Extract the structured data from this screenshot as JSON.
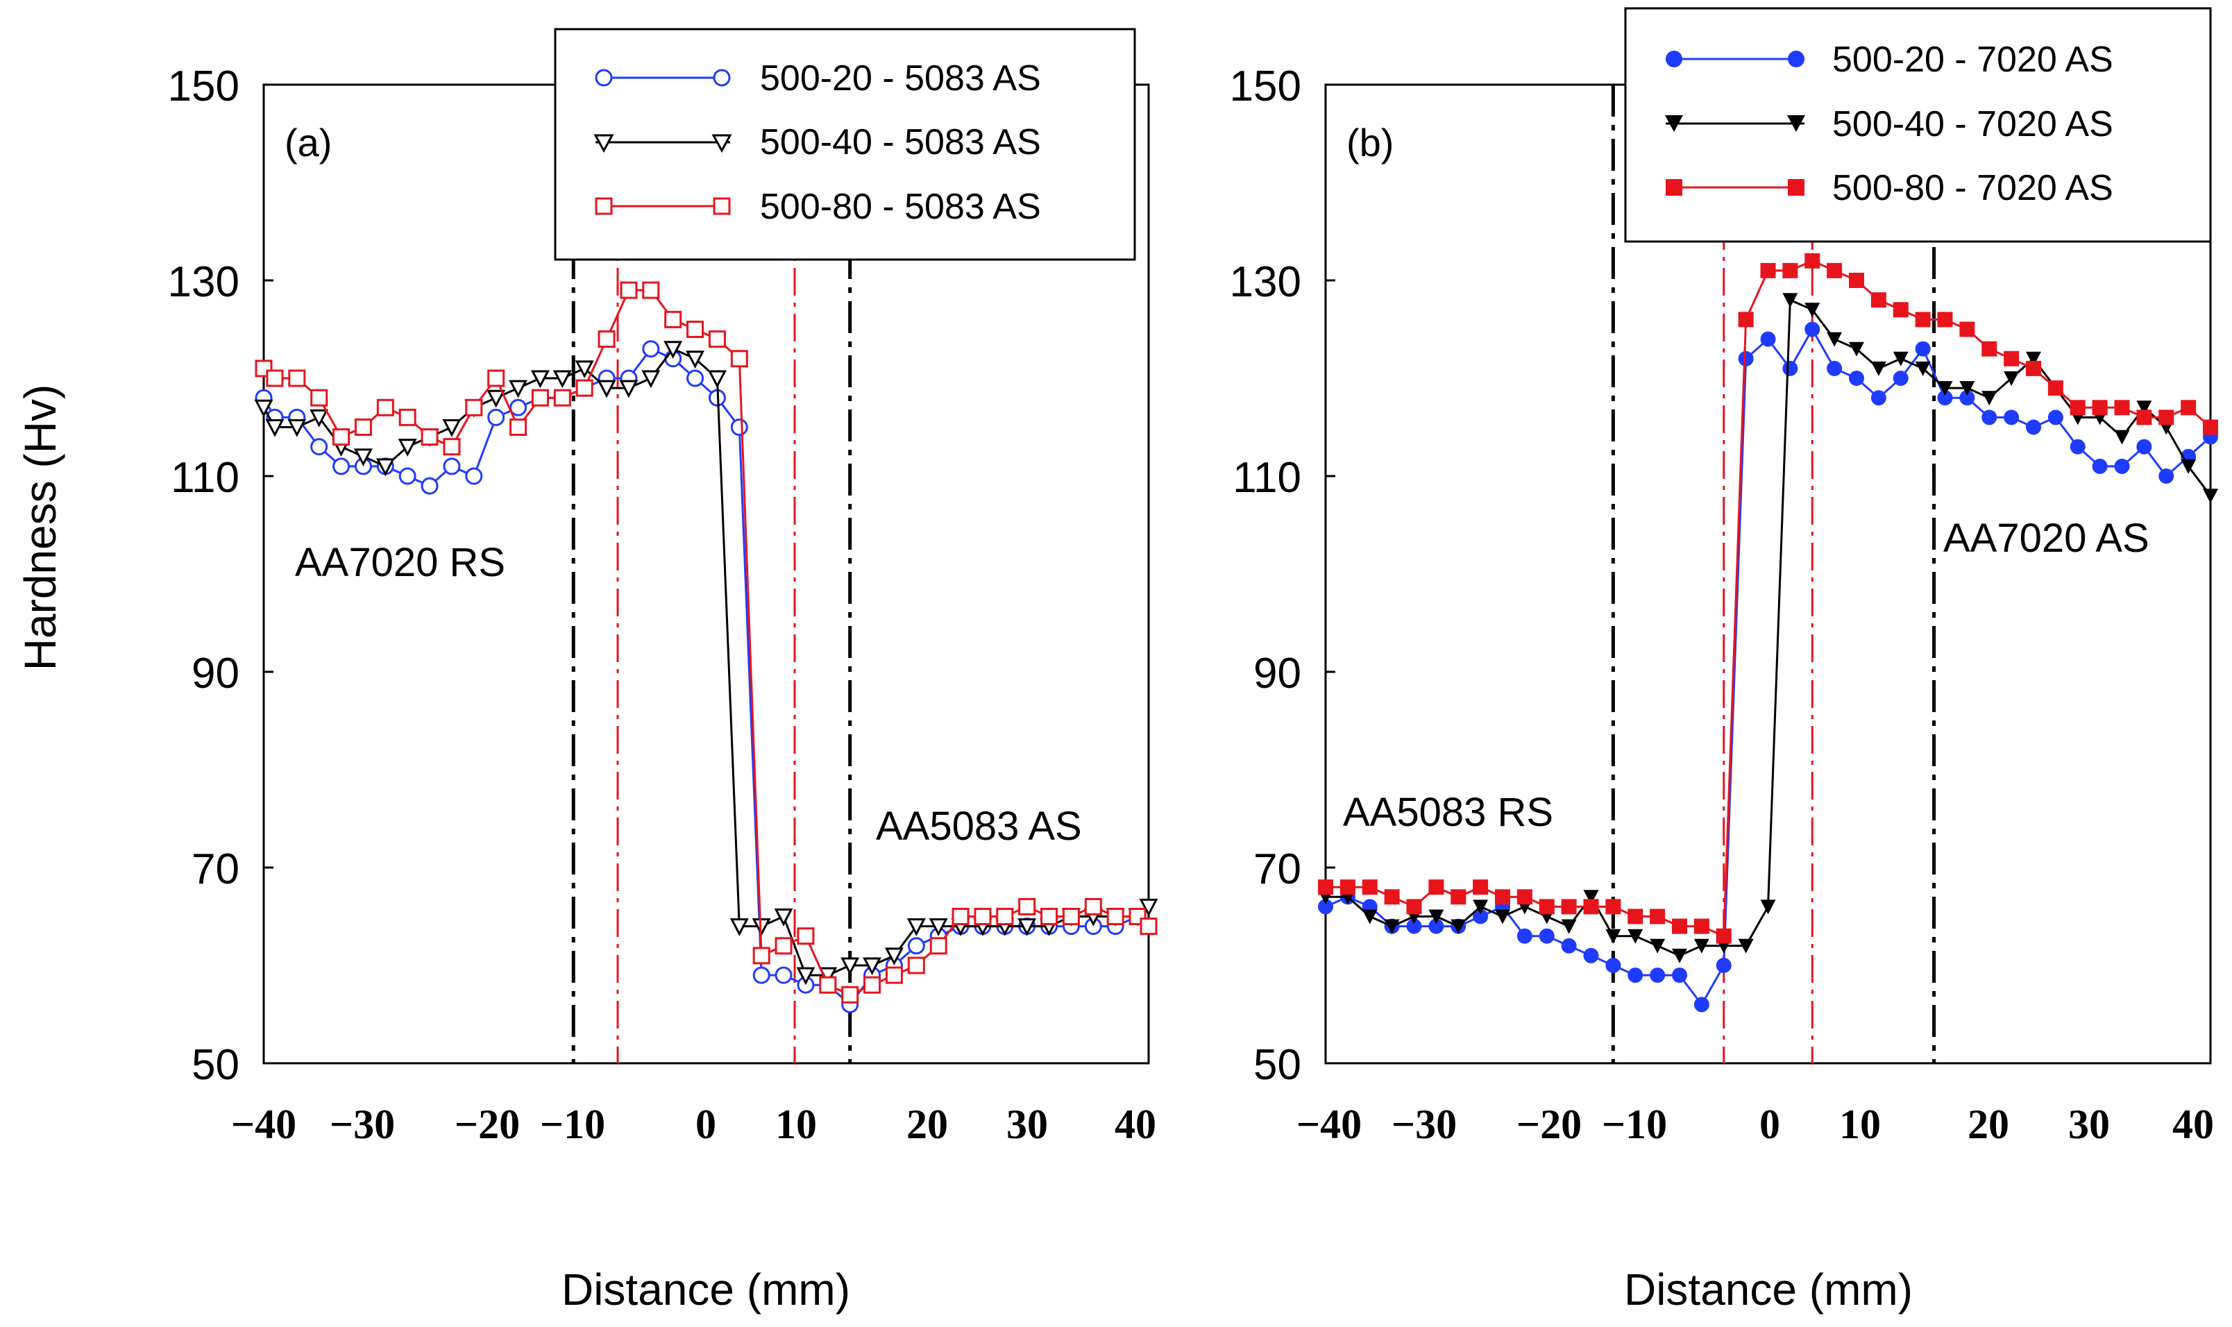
{
  "chart_data": [
    {
      "type": "line",
      "panel_label": "(a)",
      "xlabel": "Distance (mm)",
      "ylabel": "Hardness (Hv)",
      "xlim": [
        -40,
        40
      ],
      "ylim": [
        50,
        150
      ],
      "x_ticks": [
        "−40",
        "−30",
        "−20",
        "−10",
        "0",
        "10",
        "20",
        "30",
        "40"
      ],
      "x_tick_values": [
        -40,
        -30,
        -20,
        -10,
        0,
        10,
        20,
        30,
        40
      ],
      "y_ticks": [
        "50",
        "70",
        "90",
        "110",
        "130",
        "150"
      ],
      "y_tick_values": [
        50,
        70,
        90,
        110,
        130,
        150
      ],
      "vlines": [
        {
          "x": -12,
          "style": "black-dashdot"
        },
        {
          "x": -8,
          "style": "red-dashdot"
        },
        {
          "x": 8,
          "style": "red-dashdot"
        },
        {
          "x": 13,
          "style": "black-dashdot"
        }
      ],
      "annotations": [
        {
          "text": "AA7020 RS",
          "x": -37.5,
          "y": 102
        },
        {
          "text": "AA5083 AS",
          "x": 16,
          "y": 74
        }
      ],
      "legend_position": "top-right",
      "series": [
        {
          "name": "500-20 - 5083 AS",
          "color": "#1f3bff",
          "marker": "circle-open",
          "x": [
            -40,
            -39,
            -37,
            -35,
            -33,
            -31,
            -29,
            -27,
            -25,
            -23,
            -21,
            -19,
            -17,
            -15,
            -13,
            -11,
            -9,
            -7,
            -5,
            -3,
            -1,
            1,
            3,
            5,
            7,
            9,
            11,
            13,
            15,
            17,
            19,
            21,
            23,
            25,
            27,
            29,
            31,
            33,
            35,
            37,
            39,
            40
          ],
          "y": [
            118,
            116,
            116,
            113,
            111,
            111,
            111,
            110,
            109,
            111,
            110,
            116,
            117,
            118,
            118,
            119,
            120,
            120,
            123,
            122,
            120,
            118,
            115,
            59,
            59,
            58,
            58,
            56,
            59,
            60,
            62,
            63,
            64,
            64,
            64,
            64,
            64,
            64,
            64,
            64,
            65,
            64
          ]
        },
        {
          "name": "500-40 - 5083 AS",
          "color": "#000000",
          "marker": "triangle-down-open",
          "x": [
            -40,
            -39,
            -37,
            -35,
            -33,
            -31,
            -29,
            -27,
            -25,
            -23,
            -21,
            -19,
            -17,
            -15,
            -13,
            -11,
            -9,
            -7,
            -5,
            -3,
            -1,
            1,
            3,
            5,
            7,
            9,
            11,
            13,
            15,
            17,
            19,
            21,
            23,
            25,
            27,
            29,
            31,
            33,
            35,
            37,
            39,
            40
          ],
          "y": [
            117,
            115,
            115,
            116,
            113,
            112,
            111,
            113,
            114,
            115,
            117,
            118,
            119,
            120,
            120,
            121,
            119,
            119,
            120,
            123,
            122,
            120,
            64,
            64,
            65,
            59,
            59,
            60,
            60,
            61,
            64,
            64,
            64,
            64,
            64,
            64,
            64,
            65,
            65,
            65,
            65,
            66
          ]
        },
        {
          "name": "500-80 - 5083 AS",
          "color": "#e8141c",
          "marker": "square-open",
          "x": [
            -40,
            -39,
            -37,
            -35,
            -33,
            -31,
            -29,
            -27,
            -25,
            -23,
            -21,
            -19,
            -17,
            -15,
            -13,
            -11,
            -9,
            -7,
            -5,
            -3,
            -1,
            1,
            3,
            5,
            7,
            9,
            11,
            13,
            15,
            17,
            19,
            21,
            23,
            25,
            27,
            29,
            31,
            33,
            35,
            37,
            39,
            40
          ],
          "y": [
            121,
            120,
            120,
            118,
            114,
            115,
            117,
            116,
            114,
            113,
            117,
            120,
            115,
            118,
            118,
            119,
            124,
            129,
            129,
            126,
            125,
            124,
            122,
            61,
            62,
            63,
            58,
            57,
            58,
            59,
            60,
            62,
            65,
            65,
            65,
            66,
            65,
            65,
            66,
            65,
            65,
            64
          ]
        }
      ]
    },
    {
      "type": "line",
      "panel_label": "(b)",
      "xlabel": "Distance (mm)",
      "ylabel": "Hardness (Hv)",
      "xlim": [
        -40,
        40
      ],
      "ylim": [
        50,
        150
      ],
      "x_ticks": [
        "−40",
        "−30",
        "−20",
        "−10",
        "0",
        "10",
        "20",
        "30",
        "40"
      ],
      "x_tick_values": [
        -40,
        -30,
        -20,
        -10,
        0,
        10,
        20,
        30,
        40
      ],
      "y_ticks": [
        "50",
        "70",
        "90",
        "110",
        "130",
        "150"
      ],
      "y_tick_values": [
        50,
        70,
        90,
        110,
        130,
        150
      ],
      "vlines": [
        {
          "x": -14,
          "style": "black-dashdot"
        },
        {
          "x": -4,
          "style": "red-dashdot"
        },
        {
          "x": 4,
          "style": "red-dashdot"
        },
        {
          "x": 15,
          "style": "black-dashdot"
        }
      ],
      "annotations": [
        {
          "text": "AA5083 RS",
          "x": -39,
          "y": 74
        },
        {
          "text": "AA7020 AS",
          "x": 15.5,
          "y": 105
        }
      ],
      "legend_position": "top-right",
      "series": [
        {
          "name": "500-20 - 7020 AS",
          "color": "#1f3bff",
          "marker": "circle-filled",
          "x": [
            -40,
            -38,
            -36,
            -34,
            -32,
            -30,
            -28,
            -26,
            -24,
            -22,
            -20,
            -18,
            -16,
            -14,
            -12,
            -10,
            -8,
            -6,
            -4,
            -2,
            0,
            2,
            4,
            6,
            8,
            10,
            12,
            14,
            16,
            18,
            20,
            22,
            24,
            26,
            28,
            30,
            32,
            34,
            36,
            38,
            40
          ],
          "y": [
            66,
            67,
            66,
            64,
            64,
            64,
            64,
            65,
            66,
            63,
            63,
            62,
            61,
            60,
            59,
            59,
            59,
            56,
            60,
            122,
            124,
            121,
            125,
            121,
            120,
            118,
            120,
            123,
            118,
            118,
            116,
            116,
            115,
            116,
            113,
            111,
            111,
            113,
            110,
            112,
            114
          ]
        },
        {
          "name": "500-40 - 7020 AS",
          "color": "#000000",
          "marker": "triangle-down-filled",
          "x": [
            -40,
            -38,
            -36,
            -34,
            -32,
            -30,
            -28,
            -26,
            -24,
            -22,
            -20,
            -18,
            -16,
            -14,
            -12,
            -10,
            -8,
            -6,
            -4,
            -2,
            0,
            2,
            4,
            6,
            8,
            10,
            12,
            14,
            16,
            18,
            20,
            22,
            24,
            26,
            28,
            30,
            32,
            34,
            36,
            38,
            40
          ],
          "y": [
            67,
            67,
            65,
            64,
            65,
            65,
            64,
            66,
            65,
            66,
            65,
            64,
            67,
            63,
            63,
            62,
            61,
            62,
            62,
            62,
            66,
            128,
            127,
            124,
            123,
            121,
            122,
            121,
            119,
            119,
            118,
            120,
            122,
            119,
            116,
            116,
            114,
            117,
            115,
            111,
            108
          ]
        },
        {
          "name": "500-80 - 7020 AS",
          "color": "#e8141c",
          "marker": "square-filled",
          "x": [
            -40,
            -38,
            -36,
            -34,
            -32,
            -30,
            -28,
            -26,
            -24,
            -22,
            -20,
            -18,
            -16,
            -14,
            -12,
            -10,
            -8,
            -6,
            -4,
            -2,
            0,
            2,
            4,
            6,
            8,
            10,
            12,
            14,
            16,
            18,
            20,
            22,
            24,
            26,
            28,
            30,
            32,
            34,
            36,
            38,
            40
          ],
          "y": [
            68,
            68,
            68,
            67,
            66,
            68,
            67,
            68,
            67,
            67,
            66,
            66,
            66,
            66,
            65,
            65,
            64,
            64,
            63,
            126,
            131,
            131,
            132,
            131,
            130,
            128,
            127,
            126,
            126,
            125,
            123,
            122,
            121,
            119,
            117,
            117,
            117,
            116,
            116,
            117,
            115
          ]
        }
      ]
    }
  ]
}
